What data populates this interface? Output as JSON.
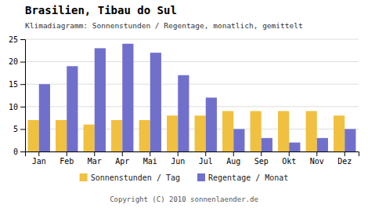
{
  "chart_data": {
    "type": "bar",
    "title": "Brasilien, Tibau do Sul",
    "subtitle": "Klimadiagramm: Sonnenstunden / Regentage, monatlich, gemittelt",
    "annotations": [
      "Copyright (C) 2010 sonnenlaender.de"
    ],
    "categories": [
      "Jan",
      "Feb",
      "Mar",
      "Apr",
      "Mai",
      "Jun",
      "Jul",
      "Aug",
      "Sep",
      "Okt",
      "Nov",
      "Dez"
    ],
    "series": [
      {
        "name": "Sonnenstunden / Tag",
        "color": "#f0c040",
        "values": [
          7,
          7,
          6,
          7,
          7,
          8,
          8,
          9,
          9,
          9,
          9,
          8
        ]
      },
      {
        "name": "Regentage / Monat",
        "color": "#7070cc",
        "values": [
          15,
          19,
          23,
          24,
          22,
          17,
          12,
          5,
          3,
          2,
          3,
          5
        ]
      }
    ],
    "ylim": [
      0,
      25
    ],
    "yticks": [
      0,
      5,
      10,
      15,
      20,
      25
    ],
    "grid": true,
    "legend": "bottom"
  }
}
